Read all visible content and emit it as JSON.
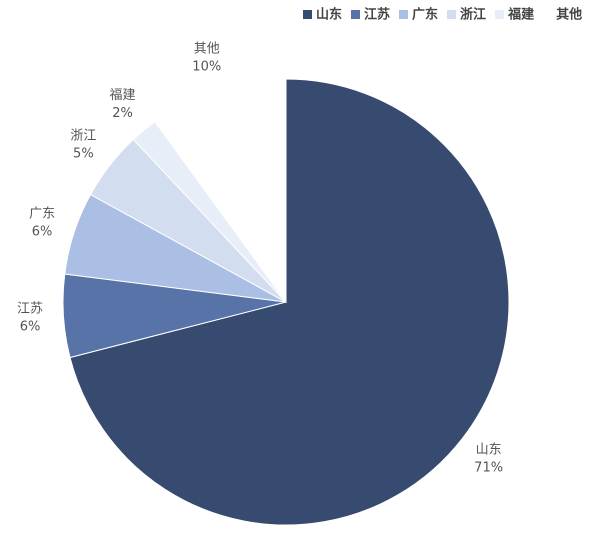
{
  "chart_data": {
    "type": "pie",
    "categories": [
      "山东",
      "江苏",
      "广东",
      "浙江",
      "福建",
      "其他"
    ],
    "values": [
      71,
      6,
      6,
      5,
      2,
      10
    ],
    "value_labels": [
      "71%",
      "6%",
      "6%",
      "5%",
      "2%",
      "10%"
    ],
    "colors": [
      "#374a70",
      "#5773a8",
      "#aabfe3",
      "#d2ddf0",
      "#e8eef8",
      "#ffffff"
    ],
    "legend": "top-right"
  }
}
